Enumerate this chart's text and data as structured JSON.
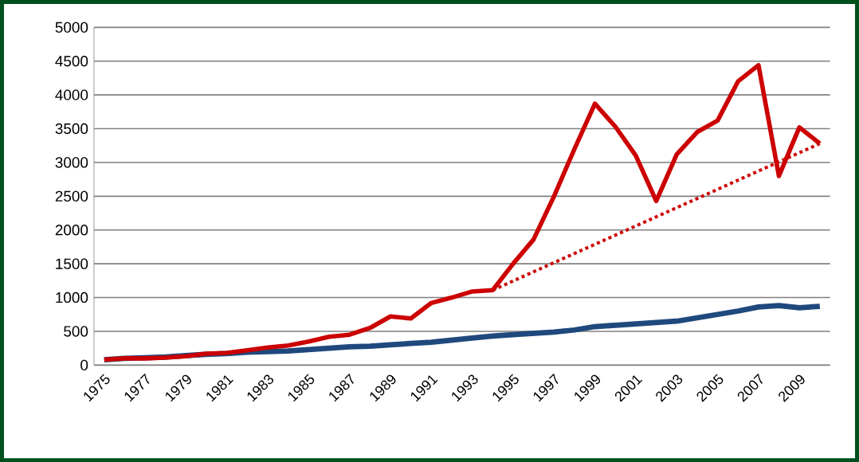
{
  "chart_data": {
    "type": "line",
    "x": [
      1975,
      1976,
      1977,
      1978,
      1979,
      1980,
      1981,
      1982,
      1983,
      1984,
      1985,
      1986,
      1987,
      1988,
      1989,
      1990,
      1991,
      1992,
      1993,
      1994,
      1995,
      1996,
      1997,
      1998,
      1999,
      2000,
      2001,
      2002,
      2003,
      2004,
      2005,
      2006,
      2007,
      2008,
      2009,
      2010
    ],
    "series": [
      {
        "color": "#1f497d",
        "values": [
          80,
          100,
          110,
          120,
          140,
          160,
          170,
          190,
          200,
          210,
          230,
          250,
          270,
          280,
          300,
          320,
          340,
          370,
          400,
          430,
          450,
          470,
          490,
          520,
          570,
          590,
          610,
          630,
          650,
          700,
          750,
          800,
          860,
          880,
          850,
          870
        ]
      },
      {
        "color": "#cc0000",
        "values": [
          80,
          100,
          100,
          110,
          130,
          170,
          180,
          220,
          260,
          290,
          350,
          420,
          450,
          550,
          720,
          690,
          920,
          1000,
          1090,
          1110,
          1500,
          1860,
          2500,
          3200,
          3870,
          3530,
          3100,
          2430,
          3120,
          3450,
          3620,
          4200,
          4440,
          2800,
          3520,
          3280
        ]
      },
      {
        "color": "#cc0000",
        "line_style": "dotted",
        "x": [
          1994,
          2010
        ],
        "values": [
          1110,
          3280
        ]
      }
    ],
    "xlim": [
      1974.5,
      2010.5
    ],
    "xticks": [
      1975,
      1977,
      1979,
      1981,
      1983,
      1985,
      1987,
      1989,
      1991,
      1993,
      1995,
      1997,
      1999,
      2001,
      2003,
      2005,
      2007,
      2009
    ],
    "ylim": [
      0,
      5000
    ],
    "yticks": [
      0,
      500,
      1000,
      1500,
      2000,
      2500,
      3000,
      3500,
      4000,
      4500,
      5000
    ],
    "grid": "y",
    "marker": "none"
  }
}
